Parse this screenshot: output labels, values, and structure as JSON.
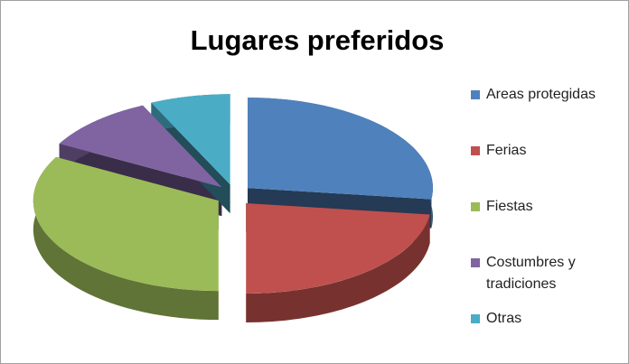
{
  "title": "Lugares preferidos",
  "chart_data": {
    "type": "pie",
    "title": "Lugares preferidos",
    "categories": [
      "Areas protegidas",
      "Ferias",
      "Fiestas",
      "Costumbres y tradiciones",
      "Otras"
    ],
    "values": [
      27,
      23,
      33,
      10,
      7
    ],
    "colors": [
      "#4f81bd",
      "#c0504d",
      "#9bbb59",
      "#8064a2",
      "#4bacc6"
    ],
    "legend": "right"
  }
}
